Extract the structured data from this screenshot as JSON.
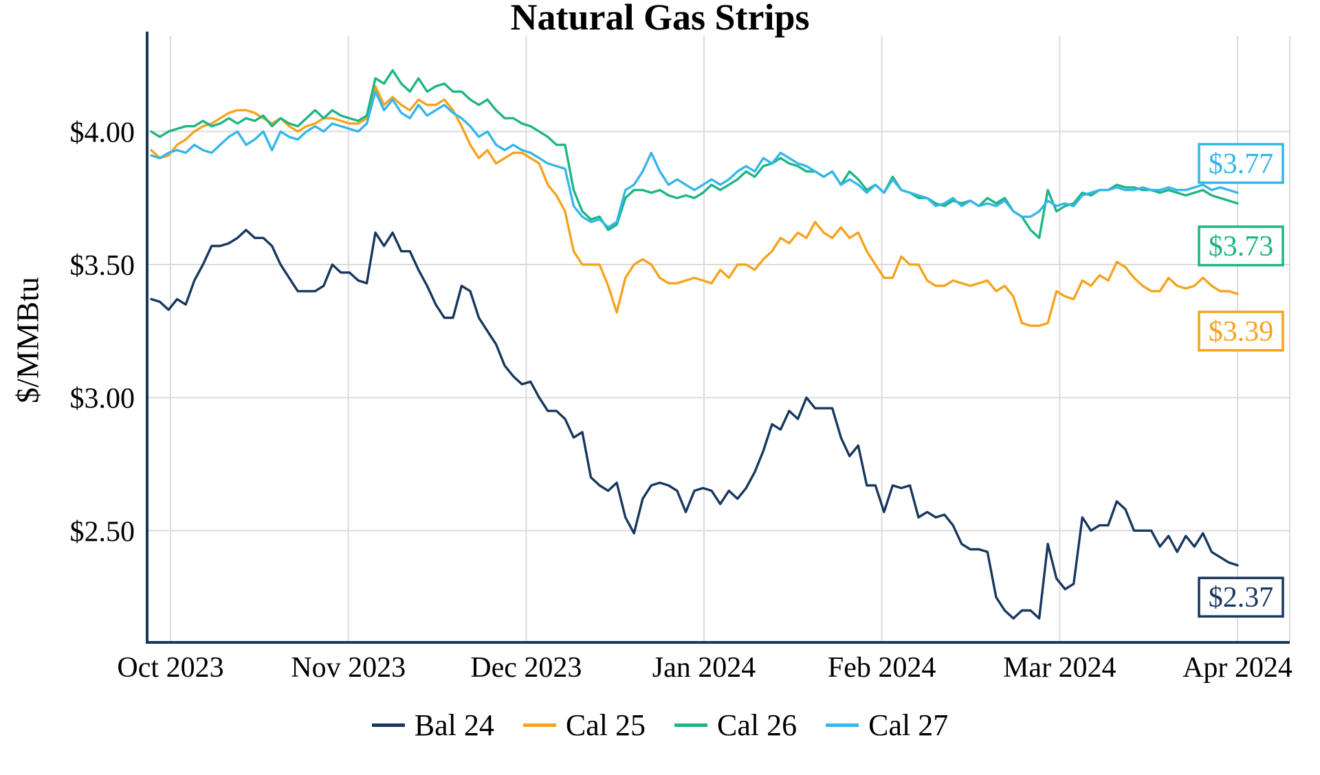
{
  "title": "Natural Gas Strips",
  "colors": {
    "background": "#FFFFFF",
    "axis": "#17375E",
    "grid": "#DBDBDB",
    "navy": "#17375E",
    "orange": "#F5A31C",
    "green": "#1DB584",
    "cyan": "#35B6EA"
  },
  "chart_data": {
    "type": "line",
    "title": "Natural Gas Strips",
    "xlabel": "",
    "ylabel": "$/MMBtu",
    "grid": true,
    "legend_position": "bottom",
    "ylim": [
      2.08,
      4.36
    ],
    "x_index_range": [
      0,
      126
    ],
    "x_ticks_at_index": [
      0,
      21,
      42,
      63,
      84,
      105,
      126
    ],
    "x_tick_labels": [
      "Oct 2023",
      "Nov 2023",
      "Dec 2023",
      "Jan 2024",
      "Feb 2024",
      "Mar 2024",
      "Apr 2024"
    ],
    "y_tick_values": [
      2.5,
      3.0,
      3.5,
      4.0
    ],
    "y_tick_labels": [
      "$2.50",
      "$3.00",
      "$3.50",
      "$4.00"
    ],
    "series": [
      {
        "name": "Bal 24",
        "color": "#17375E",
        "values": [
          3.37,
          3.36,
          3.33,
          3.37,
          3.35,
          3.44,
          3.5,
          3.57,
          3.57,
          3.58,
          3.6,
          3.63,
          3.6,
          3.6,
          3.57,
          3.5,
          3.45,
          3.4,
          3.4,
          3.4,
          3.42,
          3.5,
          3.47,
          3.47,
          3.44,
          3.43,
          3.62,
          3.57,
          3.62,
          3.55,
          3.55,
          3.48,
          3.42,
          3.35,
          3.3,
          3.3,
          3.42,
          3.4,
          3.3,
          3.25,
          3.2,
          3.12,
          3.08,
          3.05,
          3.06,
          3.0,
          2.95,
          2.95,
          2.92,
          2.85,
          2.87,
          2.7,
          2.67,
          2.65,
          2.68,
          2.55,
          2.49,
          2.62,
          2.67,
          2.68,
          2.67,
          2.65,
          2.57,
          2.65,
          2.66,
          2.65,
          2.6,
          2.65,
          2.62,
          2.66,
          2.72,
          2.8,
          2.9,
          2.88,
          2.95,
          2.92,
          3.0,
          2.96,
          2.96,
          2.96,
          2.85,
          2.78,
          2.82,
          2.67,
          2.67,
          2.57,
          2.67,
          2.66,
          2.67,
          2.55,
          2.57,
          2.55,
          2.56,
          2.52,
          2.45,
          2.43,
          2.43,
          2.42,
          2.25,
          2.2,
          2.17,
          2.2,
          2.2,
          2.17,
          2.45,
          2.32,
          2.28,
          2.3,
          2.55,
          2.5,
          2.52,
          2.52,
          2.61,
          2.58,
          2.5,
          2.5,
          2.5,
          2.44,
          2.48,
          2.42,
          2.48,
          2.44,
          2.49,
          2.42,
          2.4,
          2.38,
          2.37
        ]
      },
      {
        "name": "Cal 25",
        "color": "#F5A31C",
        "values": [
          3.93,
          3.9,
          3.91,
          3.95,
          3.97,
          4.0,
          4.02,
          4.03,
          4.05,
          4.07,
          4.08,
          4.08,
          4.07,
          4.05,
          4.03,
          4.05,
          4.02,
          4.0,
          4.02,
          4.03,
          4.05,
          4.05,
          4.04,
          4.03,
          4.03,
          4.05,
          4.17,
          4.1,
          4.13,
          4.1,
          4.08,
          4.12,
          4.1,
          4.1,
          4.12,
          4.08,
          4.02,
          3.95,
          3.9,
          3.93,
          3.88,
          3.9,
          3.92,
          3.92,
          3.9,
          3.88,
          3.8,
          3.76,
          3.7,
          3.55,
          3.5,
          3.5,
          3.5,
          3.42,
          3.32,
          3.45,
          3.5,
          3.52,
          3.5,
          3.45,
          3.43,
          3.43,
          3.44,
          3.45,
          3.44,
          3.43,
          3.48,
          3.45,
          3.5,
          3.5,
          3.48,
          3.52,
          3.55,
          3.6,
          3.58,
          3.62,
          3.6,
          3.66,
          3.62,
          3.6,
          3.64,
          3.6,
          3.62,
          3.55,
          3.5,
          3.45,
          3.45,
          3.53,
          3.5,
          3.5,
          3.44,
          3.42,
          3.42,
          3.44,
          3.43,
          3.42,
          3.43,
          3.44,
          3.4,
          3.42,
          3.38,
          3.28,
          3.27,
          3.27,
          3.28,
          3.4,
          3.38,
          3.37,
          3.44,
          3.42,
          3.46,
          3.44,
          3.51,
          3.49,
          3.45,
          3.42,
          3.4,
          3.4,
          3.45,
          3.42,
          3.41,
          3.42,
          3.45,
          3.42,
          3.4,
          3.4,
          3.39
        ]
      },
      {
        "name": "Cal 26",
        "color": "#1DB584",
        "values": [
          4.0,
          3.98,
          4.0,
          4.01,
          4.02,
          4.02,
          4.04,
          4.02,
          4.03,
          4.05,
          4.03,
          4.05,
          4.04,
          4.06,
          4.02,
          4.05,
          4.03,
          4.02,
          4.05,
          4.08,
          4.05,
          4.08,
          4.06,
          4.05,
          4.04,
          4.06,
          4.2,
          4.18,
          4.23,
          4.18,
          4.15,
          4.2,
          4.15,
          4.17,
          4.18,
          4.15,
          4.15,
          4.12,
          4.1,
          4.12,
          4.08,
          4.05,
          4.05,
          4.03,
          4.02,
          4.0,
          3.98,
          3.95,
          3.95,
          3.78,
          3.7,
          3.67,
          3.68,
          3.63,
          3.65,
          3.75,
          3.78,
          3.78,
          3.77,
          3.78,
          3.76,
          3.75,
          3.76,
          3.75,
          3.77,
          3.8,
          3.78,
          3.8,
          3.82,
          3.85,
          3.83,
          3.87,
          3.88,
          3.9,
          3.88,
          3.87,
          3.85,
          3.85,
          3.83,
          3.85,
          3.8,
          3.85,
          3.82,
          3.78,
          3.8,
          3.77,
          3.83,
          3.78,
          3.77,
          3.75,
          3.75,
          3.73,
          3.72,
          3.74,
          3.73,
          3.74,
          3.72,
          3.75,
          3.73,
          3.75,
          3.7,
          3.68,
          3.63,
          3.6,
          3.78,
          3.7,
          3.72,
          3.73,
          3.77,
          3.76,
          3.78,
          3.78,
          3.8,
          3.79,
          3.79,
          3.78,
          3.78,
          3.77,
          3.78,
          3.77,
          3.76,
          3.77,
          3.78,
          3.76,
          3.75,
          3.74,
          3.73
        ]
      },
      {
        "name": "Cal 27",
        "color": "#35B6EA",
        "values": [
          3.91,
          3.9,
          3.92,
          3.93,
          3.92,
          3.95,
          3.93,
          3.92,
          3.95,
          3.98,
          4.0,
          3.95,
          3.97,
          4.0,
          3.93,
          4.0,
          3.98,
          3.97,
          4.0,
          4.02,
          4.0,
          4.03,
          4.02,
          4.01,
          4.0,
          4.03,
          4.15,
          4.08,
          4.12,
          4.07,
          4.05,
          4.1,
          4.06,
          4.08,
          4.1,
          4.07,
          4.05,
          4.02,
          3.98,
          4.0,
          3.95,
          3.93,
          3.95,
          3.93,
          3.92,
          3.9,
          3.88,
          3.87,
          3.86,
          3.72,
          3.68,
          3.66,
          3.67,
          3.64,
          3.66,
          3.78,
          3.8,
          3.85,
          3.92,
          3.85,
          3.8,
          3.82,
          3.8,
          3.78,
          3.8,
          3.82,
          3.8,
          3.82,
          3.85,
          3.87,
          3.85,
          3.9,
          3.88,
          3.92,
          3.9,
          3.88,
          3.87,
          3.85,
          3.83,
          3.85,
          3.8,
          3.82,
          3.8,
          3.77,
          3.8,
          3.77,
          3.82,
          3.78,
          3.77,
          3.76,
          3.75,
          3.72,
          3.73,
          3.75,
          3.72,
          3.74,
          3.72,
          3.73,
          3.72,
          3.74,
          3.7,
          3.68,
          3.68,
          3.7,
          3.74,
          3.72,
          3.73,
          3.72,
          3.76,
          3.77,
          3.78,
          3.78,
          3.79,
          3.78,
          3.78,
          3.79,
          3.78,
          3.78,
          3.79,
          3.78,
          3.78,
          3.79,
          3.8,
          3.78,
          3.79,
          3.78,
          3.77
        ]
      }
    ],
    "end_labels": [
      {
        "text": "$3.77",
        "series": "Cal 27",
        "color": "#35B6EA",
        "anchor_value": 3.88
      },
      {
        "text": "$3.73",
        "series": "Cal 26",
        "color": "#1DB584",
        "anchor_value": 3.57
      },
      {
        "text": "$3.39",
        "series": "Cal 25",
        "color": "#F5A31C",
        "anchor_value": 3.25
      },
      {
        "text": "$2.37",
        "series": "Bal 24",
        "color": "#17375E",
        "anchor_value": 2.25
      }
    ]
  }
}
